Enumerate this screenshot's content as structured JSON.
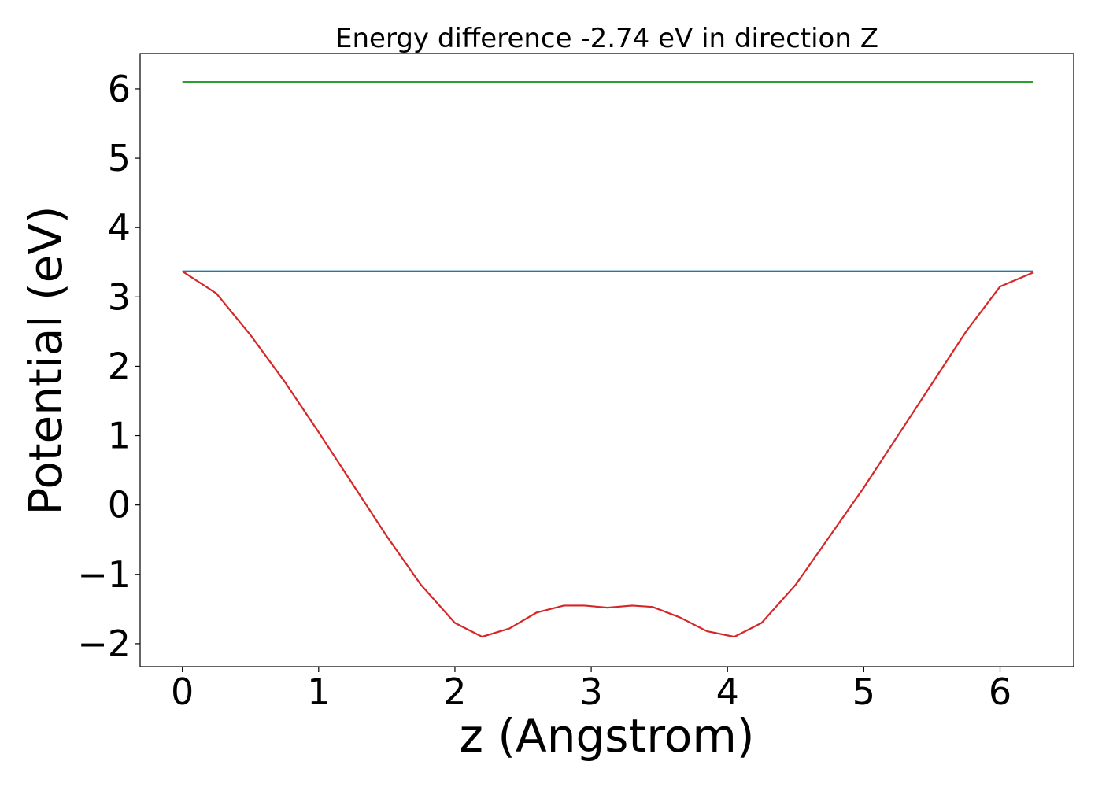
{
  "chart_data": {
    "type": "line",
    "title": "Energy difference -2.74 eV in direction Z",
    "xlabel": "z (Angstrom)",
    "ylabel": "Potential (eV)",
    "xlim": [
      -0.31,
      6.54
    ],
    "ylim": [
      -2.33,
      6.51
    ],
    "xticks": [
      0,
      1,
      2,
      3,
      4,
      5,
      6
    ],
    "yticks": [
      -2,
      -1,
      0,
      1,
      2,
      3,
      4,
      5,
      6
    ],
    "xtick_labels": [
      "0",
      "1",
      "2",
      "3",
      "4",
      "5",
      "6"
    ],
    "ytick_labels": [
      "−2",
      "−1",
      "0",
      "1",
      "2",
      "3",
      "4",
      "5",
      "6"
    ],
    "grid": false,
    "legend": "none",
    "series": [
      {
        "color": "#2ca02c",
        "x": [
          0,
          6.24
        ],
        "y": [
          6.1,
          6.1
        ]
      },
      {
        "color": "#1f77b4",
        "x": [
          0,
          6.24
        ],
        "y": [
          3.37,
          3.37
        ]
      },
      {
        "color": "#d62728",
        "x": [
          0,
          0.25,
          0.5,
          0.75,
          1.0,
          1.25,
          1.5,
          1.75,
          2.0,
          2.2,
          2.4,
          2.6,
          2.8,
          2.95,
          3.12,
          3.3,
          3.45,
          3.65,
          3.85,
          4.05,
          4.25,
          4.5,
          4.75,
          5.0,
          5.25,
          5.5,
          5.75,
          6.0,
          6.24
        ],
        "y": [
          3.37,
          3.05,
          2.45,
          1.78,
          1.05,
          0.3,
          -0.45,
          -1.15,
          -1.7,
          -1.9,
          -1.78,
          -1.55,
          -1.45,
          -1.45,
          -1.48,
          -1.45,
          -1.47,
          -1.62,
          -1.82,
          -1.9,
          -1.7,
          -1.15,
          -0.45,
          0.25,
          1.0,
          1.75,
          2.5,
          3.15,
          3.35
        ]
      }
    ]
  }
}
